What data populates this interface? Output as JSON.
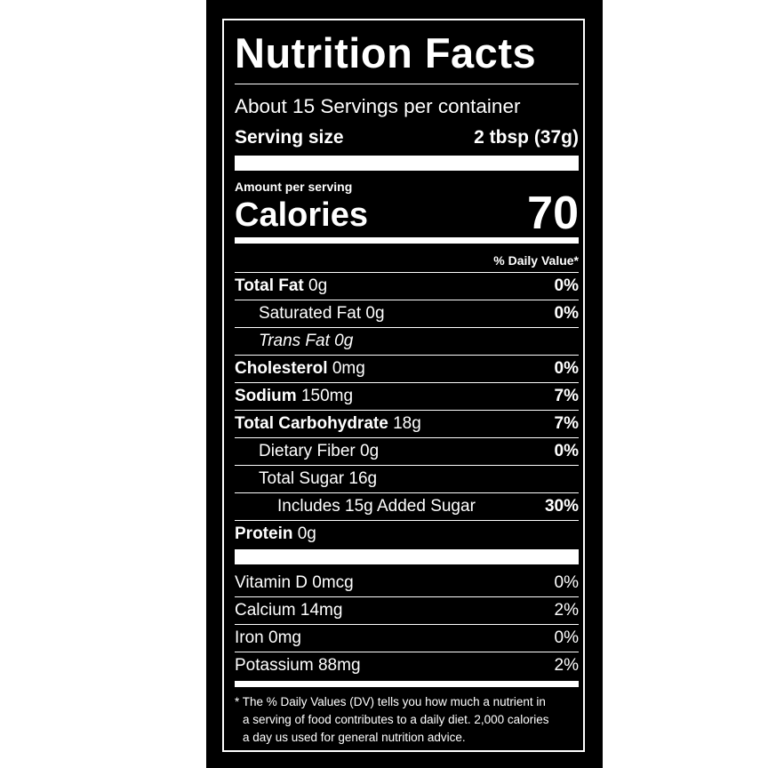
{
  "title": "Nutrition Facts",
  "servings_per_container": "About 15 Servings per container",
  "serving_size": {
    "label": "Serving size",
    "value": "2 tbsp (37g)"
  },
  "amount_per_serving": "Amount per serving",
  "calories": {
    "label": "Calories",
    "value": "70"
  },
  "daily_value_header": "% Daily Value*",
  "nutrients": [
    {
      "name": "Total Fat",
      "amount": "0g",
      "dv": "0%"
    },
    {
      "name": "Saturated Fat 0g",
      "dv": "0%"
    },
    {
      "name": "Trans Fat 0g"
    },
    {
      "name": "Cholesterol",
      "amount": "0mg",
      "dv": "0%"
    },
    {
      "name": "Sodium",
      "amount": "150mg",
      "dv": "7%"
    },
    {
      "name": "Total Carbohydrate",
      "amount": "18g",
      "dv": "7%"
    },
    {
      "name": "Dietary Fiber 0g",
      "dv": "0%"
    },
    {
      "name": "Total Sugar 16g"
    },
    {
      "name": "Includes 15g Added Sugar",
      "dv": "30%"
    },
    {
      "name": "Protein",
      "amount": "0g"
    }
  ],
  "vitamins": [
    {
      "name": "Vitamin D 0mcg",
      "dv": "0%"
    },
    {
      "name": "Calcium 14mg",
      "dv": "2%"
    },
    {
      "name": "Iron 0mg",
      "dv": "0%"
    },
    {
      "name": "Potassium 88mg",
      "dv": "2%"
    }
  ],
  "footnote": {
    "line1": "* The % Daily Values (DV) tells you how much a nutrient in",
    "line2": "a serving of food contributes to a daily diet. 2,000 calories",
    "line3": "a day us used for general nutrition advice."
  },
  "colors": {
    "background": "#000000",
    "text": "#ffffff"
  }
}
